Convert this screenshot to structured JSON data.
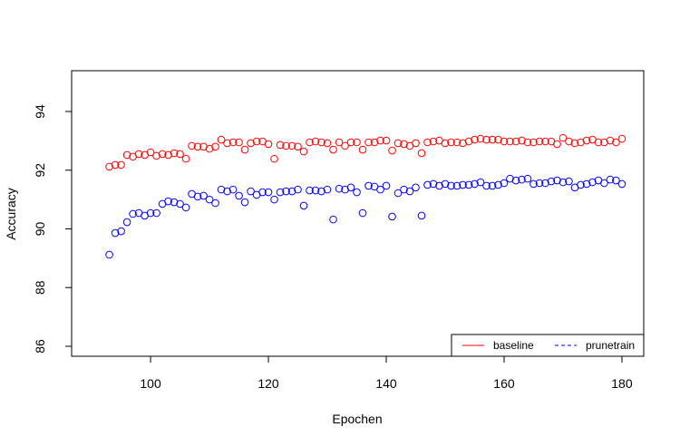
{
  "chart_data": {
    "type": "scatter",
    "xlabel": "Epochen",
    "ylabel": "Accuracy",
    "xlim": [
      86.6,
      183.7
    ],
    "ylim": [
      85.66,
      95.39
    ],
    "xticks": [
      100,
      120,
      140,
      160,
      180
    ],
    "yticks": [
      86,
      88,
      90,
      92,
      94
    ],
    "legend": "bottomright",
    "x": [
      93,
      94,
      95,
      96,
      97,
      98,
      99,
      100,
      101,
      102,
      103,
      104,
      105,
      106,
      107,
      108,
      109,
      110,
      111,
      112,
      113,
      114,
      115,
      116,
      117,
      118,
      119,
      120,
      121,
      122,
      123,
      124,
      125,
      126,
      127,
      128,
      129,
      130,
      131,
      132,
      133,
      134,
      135,
      136,
      137,
      138,
      139,
      140,
      141,
      142,
      143,
      144,
      145,
      146,
      147,
      148,
      149,
      150,
      151,
      152,
      153,
      154,
      155,
      156,
      157,
      158,
      159,
      160,
      161,
      162,
      163,
      164,
      165,
      166,
      167,
      168,
      169,
      170,
      171,
      172,
      173,
      174,
      175,
      176,
      177,
      178,
      179,
      180
    ],
    "series": [
      {
        "name": "baseline",
        "color": "#ff0000",
        "linestyle": "solid",
        "values": [
          92.12,
          92.18,
          92.18,
          92.52,
          92.46,
          92.55,
          92.52,
          92.61,
          92.49,
          92.55,
          92.52,
          92.58,
          92.55,
          92.39,
          92.83,
          92.8,
          92.8,
          92.73,
          92.8,
          93.04,
          92.92,
          92.95,
          92.95,
          92.7,
          92.92,
          92.98,
          92.98,
          92.89,
          92.39,
          92.86,
          92.83,
          92.83,
          92.8,
          92.64,
          92.95,
          92.98,
          92.95,
          92.92,
          92.7,
          92.95,
          92.83,
          92.95,
          92.95,
          92.7,
          92.95,
          92.95,
          93.01,
          93.01,
          92.67,
          92.92,
          92.89,
          92.83,
          92.92,
          92.58,
          92.95,
          92.98,
          93.01,
          92.92,
          92.95,
          92.95,
          92.92,
          92.98,
          93.04,
          93.07,
          93.04,
          93.04,
          93.04,
          92.98,
          92.98,
          92.98,
          93.01,
          92.95,
          92.95,
          92.98,
          92.98,
          92.98,
          92.89,
          93.1,
          92.98,
          92.92,
          92.95,
          93.01,
          93.04,
          92.95,
          92.95,
          93.01,
          92.95,
          93.07
        ]
      },
      {
        "name": "prunetrain",
        "color": "#0000ff",
        "linestyle": "dashed",
        "values": [
          89.12,
          89.86,
          89.92,
          90.23,
          90.51,
          90.54,
          90.45,
          90.54,
          90.54,
          90.85,
          90.94,
          90.91,
          90.85,
          90.73,
          91.19,
          91.1,
          91.13,
          91.0,
          90.88,
          91.34,
          91.28,
          91.34,
          91.13,
          90.91,
          91.28,
          91.16,
          91.25,
          91.25,
          91.0,
          91.25,
          91.28,
          91.28,
          91.34,
          90.79,
          91.31,
          91.31,
          91.28,
          91.34,
          90.32,
          91.37,
          91.34,
          91.41,
          91.25,
          90.54,
          91.47,
          91.44,
          91.34,
          91.47,
          90.42,
          91.22,
          91.34,
          91.28,
          91.41,
          90.45,
          91.5,
          91.53,
          91.47,
          91.53,
          91.47,
          91.47,
          91.5,
          91.5,
          91.53,
          91.59,
          91.47,
          91.47,
          91.5,
          91.56,
          91.71,
          91.65,
          91.68,
          91.71,
          91.53,
          91.56,
          91.56,
          91.62,
          91.65,
          91.59,
          91.62,
          91.41,
          91.5,
          91.53,
          91.59,
          91.65,
          91.56,
          91.68,
          91.65,
          91.53
        ]
      }
    ]
  }
}
